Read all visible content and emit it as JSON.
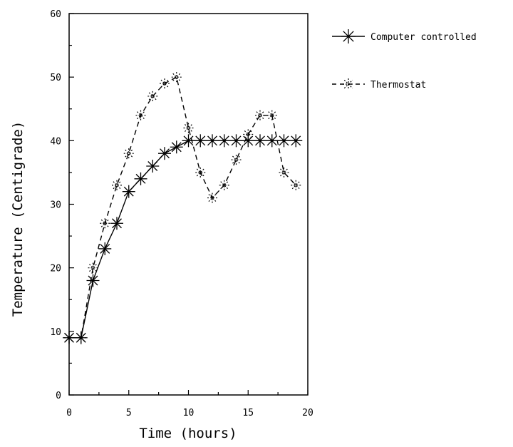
{
  "chart_data": {
    "type": "line",
    "title": "",
    "xlabel": "Time (hours)",
    "ylabel": "Temperature (Centigrade)",
    "xlim": [
      0,
      20
    ],
    "ylim": [
      0,
      60
    ],
    "xticks": [
      0,
      5,
      10,
      15,
      20
    ],
    "yticks": [
      0,
      10,
      20,
      30,
      40,
      50,
      60
    ],
    "xtick_labels": [
      "0",
      "5",
      "10",
      "15",
      "20"
    ],
    "ytick_labels": [
      "0",
      "10",
      "20",
      "30",
      "40",
      "50",
      "60"
    ],
    "grid": false,
    "legend_position": "top-right, outside plot",
    "series": [
      {
        "name": "Computer controlled",
        "style": "solid",
        "marker": "asterisk",
        "color": "#000000",
        "x": [
          0,
          1,
          2,
          3,
          4,
          5,
          6,
          7,
          8,
          9,
          10,
          11,
          12,
          13,
          14,
          15,
          16,
          17,
          18,
          19
        ],
        "y": [
          9,
          9,
          18,
          23,
          27,
          32,
          34,
          36,
          38,
          39,
          40,
          40,
          40,
          40,
          40,
          40,
          40,
          40,
          40,
          40
        ]
      },
      {
        "name": "Thermostat",
        "style": "dashed",
        "marker": "dotted-asterisk",
        "color": "#000000",
        "x": [
          0,
          1,
          2,
          3,
          4,
          5,
          6,
          7,
          8,
          9,
          10,
          11,
          12,
          13,
          14,
          15,
          16,
          17,
          18,
          19
        ],
        "y": [
          9,
          9,
          20,
          27,
          33,
          38,
          44,
          47,
          49,
          50,
          42,
          35,
          31,
          33,
          37,
          41,
          44,
          44,
          35,
          33
        ]
      }
    ]
  }
}
